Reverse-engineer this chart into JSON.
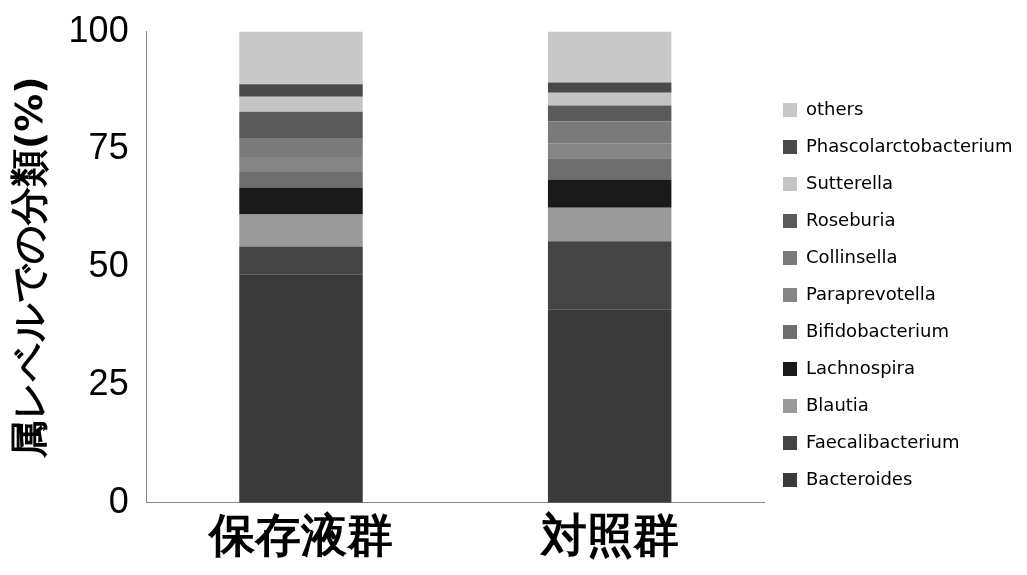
{
  "chart_data": {
    "type": "bar",
    "stacked": true,
    "ylabel": "属レベルでの分類(%)",
    "categories": [
      "保存液群",
      "対照群"
    ],
    "ylim": [
      0,
      100
    ],
    "yticks": [
      0,
      25,
      50,
      75,
      100
    ],
    "grid": false,
    "legend": "right",
    "series": [
      {
        "name": "Bacteroides",
        "color": "#3a3a3a",
        "values": [
          48.4,
          41.1
        ]
      },
      {
        "name": "Faecalibacterium",
        "color": "#444444",
        "values": [
          6.0,
          14.4
        ]
      },
      {
        "name": "Blautia",
        "color": "#9a9a9a",
        "values": [
          6.8,
          7.1
        ]
      },
      {
        "name": "Lachnospira",
        "color": "#1a1a1a",
        "values": [
          5.7,
          6.0
        ]
      },
      {
        "name": "Bifidobacterium",
        "color": "#6e6e6e",
        "values": [
          3.3,
          4.5
        ]
      },
      {
        "name": "Paraprevotella",
        "color": "#858585",
        "values": [
          3.2,
          3.2
        ]
      },
      {
        "name": "Collinsella",
        "color": "#7a7a7a",
        "values": [
          4.0,
          4.6
        ]
      },
      {
        "name": "Roseburia",
        "color": "#5a5a5a",
        "values": [
          5.6,
          3.4
        ]
      },
      {
        "name": "Sutterella",
        "color": "#c4c4c4",
        "values": [
          3.2,
          2.7
        ]
      },
      {
        "name": "Phascolarctobacterium",
        "color": "#4a4a4a",
        "values": [
          2.6,
          2.2
        ]
      },
      {
        "name": "others",
        "color": "#c8c8c8",
        "values": [
          11.2,
          10.8
        ]
      }
    ]
  }
}
